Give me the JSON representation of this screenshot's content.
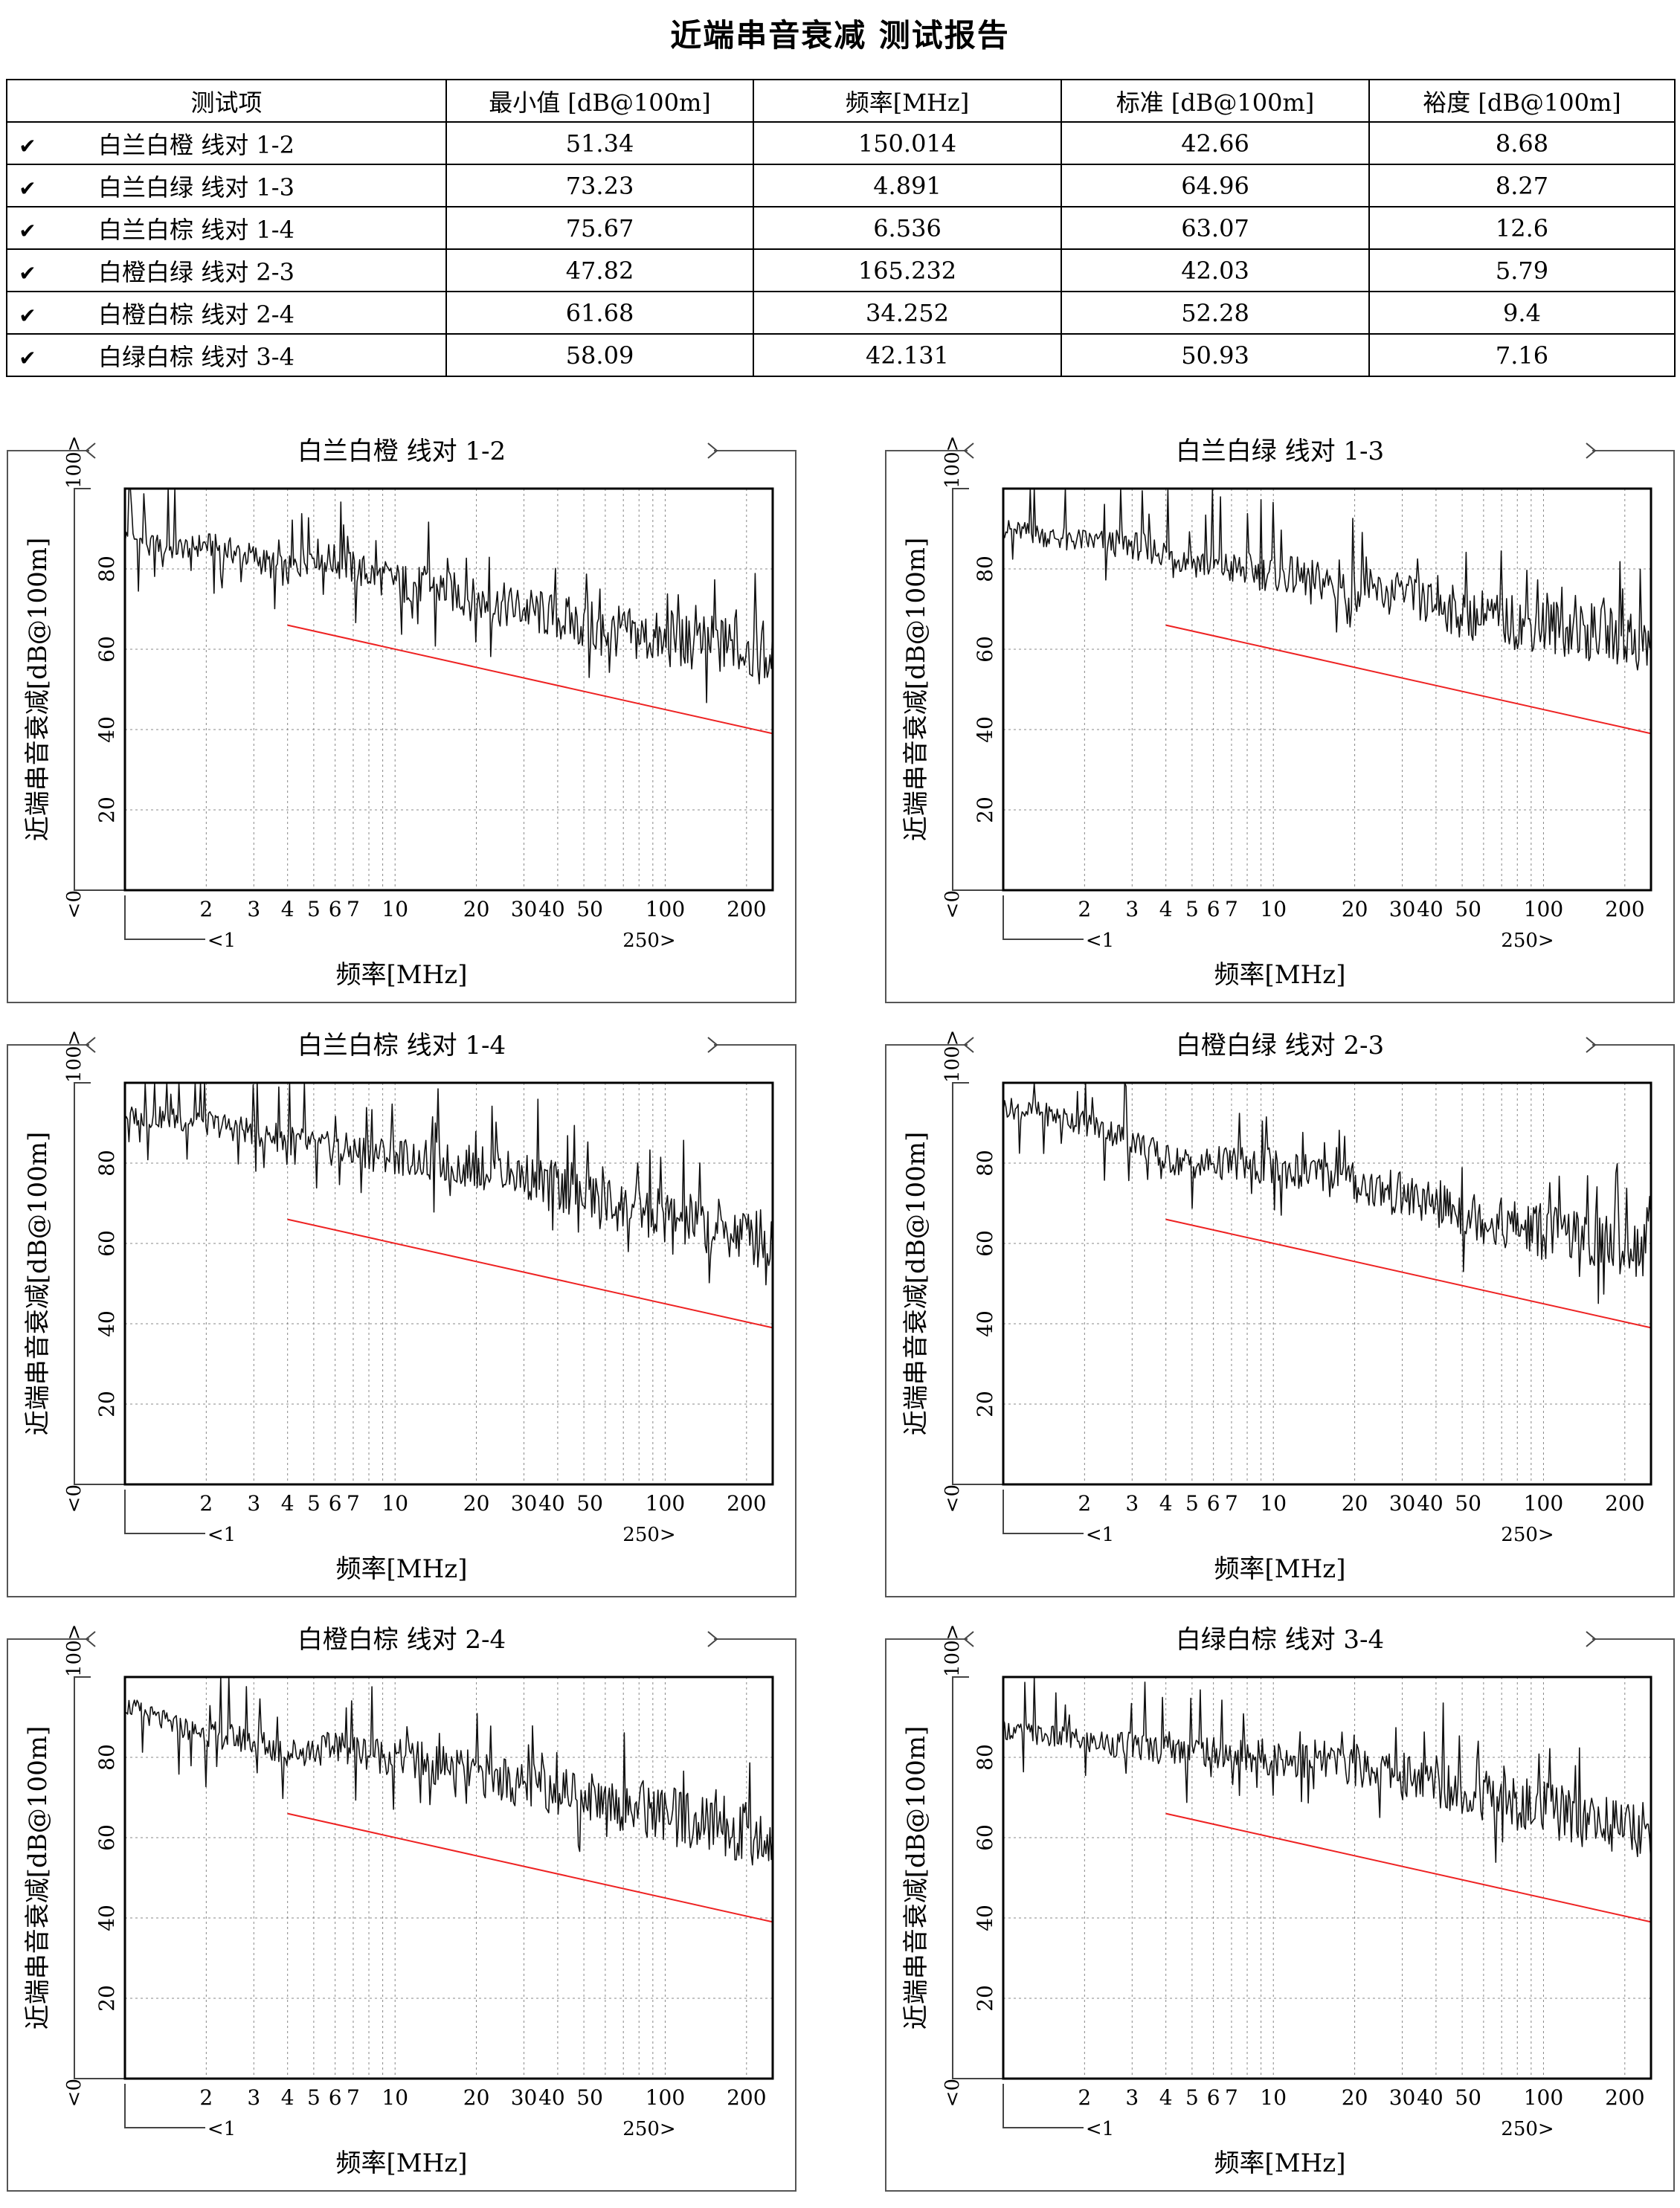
{
  "title": "近端串音衰减 测试报告",
  "table": {
    "headers": [
      "测试项",
      "最小值 [dB@100m]",
      "频率[MHz]",
      "标准 [dB@100m]",
      "裕度 [dB@100m]"
    ],
    "rows": [
      {
        "label": "白兰白橙 线对 1-2",
        "min": "51.34",
        "freq": "150.014",
        "std": "42.66",
        "margin": "8.68"
      },
      {
        "label": "白兰白绿 线对 1-3",
        "min": "73.23",
        "freq": "4.891",
        "std": "64.96",
        "margin": "8.27"
      },
      {
        "label": "白兰白棕 线对 1-4",
        "min": "75.67",
        "freq": "6.536",
        "std": "63.07",
        "margin": "12.6"
      },
      {
        "label": "白橙白绿 线对 2-3",
        "min": "47.82",
        "freq": "165.232",
        "std": "42.03",
        "margin": "5.79"
      },
      {
        "label": "白橙白棕 线对 2-4",
        "min": "61.68",
        "freq": "34.252",
        "std": "52.28",
        "margin": "9.4"
      },
      {
        "label": "白绿白棕 线对 3-4",
        "min": "58.09",
        "freq": "42.131",
        "std": "50.93",
        "margin": "7.16"
      }
    ]
  },
  "colors": {
    "limit_line": "#ee2222",
    "measurement": "#111111",
    "grid": "#888888"
  },
  "icons": {
    "row_status": "checkmark-icon",
    "range_markers": "angle-bracket-icon"
  },
  "chart_data": [
    {
      "type": "line",
      "title": "白兰白橙 线对 1-2",
      "xlabel": "频率[MHz]",
      "ylabel": "近端串音衰减[dB@100m]",
      "x_scale": "log",
      "xlim": [
        1,
        250
      ],
      "ylim": [
        0,
        100
      ],
      "x_ticks": [
        "2",
        "3",
        "4",
        "5",
        "6",
        "7",
        "10",
        "20",
        "30",
        "40",
        "50",
        "100",
        "200"
      ],
      "x_range_labels": [
        "<1",
        "250>"
      ],
      "y_ticks": [
        "20",
        "40",
        "60",
        "80"
      ],
      "y_range_labels": [
        "<0",
        "100>"
      ],
      "grid": true,
      "series": [
        {
          "values": [
            [
              1,
              88
            ],
            [
              1.5,
              85
            ],
            [
              2,
              86
            ],
            [
              3,
              83
            ],
            [
              4,
              79
            ],
            [
              5,
              84
            ],
            [
              7,
              80
            ],
            [
              10,
              77
            ],
            [
              15,
              75
            ],
            [
              20,
              72
            ],
            [
              30,
              70
            ],
            [
              50,
              66
            ],
            [
              70,
              64
            ],
            [
              100,
              62
            ],
            [
              150,
              61
            ],
            [
              200,
              60
            ],
            [
              250,
              57
            ]
          ]
        },
        {
          "values": [
            [
              4,
              66
            ],
            [
              250,
              39
            ]
          ]
        }
      ],
      "min": {
        "x": 150.014,
        "y": 51.34
      }
    },
    {
      "type": "line",
      "title": "白兰白绿 线对 1-3",
      "xlabel": "频率[MHz]",
      "ylabel": "近端串音衰减[dB@100m]",
      "x_scale": "log",
      "xlim": [
        1,
        250
      ],
      "ylim": [
        0,
        100
      ],
      "x_ticks": [
        "2",
        "3",
        "4",
        "5",
        "6",
        "7",
        "10",
        "20",
        "30",
        "40",
        "50",
        "100",
        "200"
      ],
      "x_range_labels": [
        "<1",
        "250>"
      ],
      "y_ticks": [
        "20",
        "40",
        "60",
        "80"
      ],
      "y_range_labels": [
        "<0",
        "100>"
      ],
      "grid": true,
      "series": [
        {
          "values": [
            [
              1,
              90
            ],
            [
              1.5,
              88
            ],
            [
              2,
              87
            ],
            [
              3,
              86
            ],
            [
              4,
              84
            ],
            [
              5,
              82
            ],
            [
              7,
              80
            ],
            [
              10,
              79
            ],
            [
              15,
              77
            ],
            [
              20,
              75
            ],
            [
              30,
              73
            ],
            [
              50,
              69
            ],
            [
              70,
              67
            ],
            [
              100,
              66
            ],
            [
              150,
              64
            ],
            [
              200,
              63
            ],
            [
              250,
              61
            ]
          ]
        },
        {
          "values": [
            [
              4,
              66
            ],
            [
              250,
              39
            ]
          ]
        }
      ],
      "min": {
        "x": 4.891,
        "y": 73.23
      }
    },
    {
      "type": "line",
      "title": "白兰白棕 线对 1-4",
      "xlabel": "频率[MHz]",
      "ylabel": "近端串音衰减[dB@100m]",
      "x_scale": "log",
      "xlim": [
        1,
        250
      ],
      "ylim": [
        0,
        100
      ],
      "x_ticks": [
        "2",
        "3",
        "4",
        "5",
        "6",
        "7",
        "10",
        "20",
        "30",
        "40",
        "50",
        "100",
        "200"
      ],
      "x_range_labels": [
        "<1",
        "250>"
      ],
      "y_ticks": [
        "20",
        "40",
        "60",
        "80"
      ],
      "y_range_labels": [
        "<0",
        "100>"
      ],
      "grid": true,
      "series": [
        {
          "values": [
            [
              1,
              92
            ],
            [
              1.5,
              91
            ],
            [
              2,
              90
            ],
            [
              3,
              88
            ],
            [
              4,
              86
            ],
            [
              5,
              84
            ],
            [
              7,
              83
            ],
            [
              10,
              82
            ],
            [
              15,
              80
            ],
            [
              20,
              79
            ],
            [
              30,
              77
            ],
            [
              50,
              72
            ],
            [
              70,
              69
            ],
            [
              100,
              67
            ],
            [
              150,
              64
            ],
            [
              200,
              62
            ],
            [
              250,
              60
            ]
          ]
        },
        {
          "values": [
            [
              4,
              66
            ],
            [
              250,
              39
            ]
          ]
        }
      ],
      "min": {
        "x": 6.536,
        "y": 75.67
      }
    },
    {
      "type": "line",
      "title": "白橙白绿 线对 2-3",
      "xlabel": "频率[MHz]",
      "ylabel": "近端串音衰减[dB@100m]",
      "x_scale": "log",
      "xlim": [
        1,
        250
      ],
      "ylim": [
        0,
        100
      ],
      "x_ticks": [
        "2",
        "3",
        "4",
        "5",
        "6",
        "7",
        "10",
        "20",
        "30",
        "40",
        "50",
        "100",
        "200"
      ],
      "x_range_labels": [
        "<1",
        "250>"
      ],
      "y_ticks": [
        "20",
        "40",
        "60",
        "80"
      ],
      "y_range_labels": [
        "<0",
        "100>"
      ],
      "grid": true,
      "series": [
        {
          "values": [
            [
              1,
              94
            ],
            [
              1.5,
              92
            ],
            [
              2,
              90
            ],
            [
              3,
              86
            ],
            [
              4,
              81
            ],
            [
              5,
              80
            ],
            [
              7,
              80
            ],
            [
              10,
              79
            ],
            [
              15,
              77
            ],
            [
              20,
              75
            ],
            [
              30,
              72
            ],
            [
              50,
              68
            ],
            [
              70,
              65
            ],
            [
              100,
              63
            ],
            [
              150,
              61
            ],
            [
              200,
              60
            ],
            [
              250,
              58
            ]
          ]
        },
        {
          "values": [
            [
              4,
              66
            ],
            [
              250,
              39
            ]
          ]
        }
      ],
      "min": {
        "x": 165.232,
        "y": 47.82
      }
    },
    {
      "type": "line",
      "title": "白橙白棕 线对 2-4",
      "xlabel": "频率[MHz]",
      "ylabel": "近端串音衰减[dB@100m]",
      "x_scale": "log",
      "xlim": [
        1,
        250
      ],
      "ylim": [
        0,
        100
      ],
      "x_ticks": [
        "2",
        "3",
        "4",
        "5",
        "6",
        "7",
        "10",
        "20",
        "30",
        "40",
        "50",
        "100",
        "200"
      ],
      "x_range_labels": [
        "<1",
        "250>"
      ],
      "y_ticks": [
        "20",
        "40",
        "60",
        "80"
      ],
      "y_range_labels": [
        "<0",
        "100>"
      ],
      "grid": true,
      "series": [
        {
          "values": [
            [
              1,
              93
            ],
            [
              1.5,
              88
            ],
            [
              2,
              86
            ],
            [
              3,
              84
            ],
            [
              4,
              81
            ],
            [
              5,
              82
            ],
            [
              7,
              82
            ],
            [
              10,
              80
            ],
            [
              15,
              78
            ],
            [
              20,
              76
            ],
            [
              30,
              73
            ],
            [
              50,
              71
            ],
            [
              70,
              68
            ],
            [
              100,
              66
            ],
            [
              150,
              63
            ],
            [
              200,
              61
            ],
            [
              250,
              59
            ]
          ]
        },
        {
          "values": [
            [
              4,
              66
            ],
            [
              250,
              39
            ]
          ]
        }
      ],
      "min": {
        "x": 34.252,
        "y": 61.68
      }
    },
    {
      "type": "line",
      "title": "白绿白棕 线对 3-4",
      "xlabel": "频率[MHz]",
      "ylabel": "近端串音衰减[dB@100m]",
      "x_scale": "log",
      "xlim": [
        1,
        250
      ],
      "ylim": [
        0,
        100
      ],
      "x_ticks": [
        "2",
        "3",
        "4",
        "5",
        "6",
        "7",
        "10",
        "20",
        "30",
        "40",
        "50",
        "100",
        "200"
      ],
      "x_range_labels": [
        "<1",
        "250>"
      ],
      "y_ticks": [
        "20",
        "40",
        "60",
        "80"
      ],
      "y_range_labels": [
        "<0",
        "100>"
      ],
      "grid": true,
      "series": [
        {
          "values": [
            [
              1,
              87
            ],
            [
              1.5,
              85
            ],
            [
              2,
              84
            ],
            [
              3,
              83
            ],
            [
              4,
              82
            ],
            [
              5,
              82
            ],
            [
              7,
              81
            ],
            [
              10,
              80
            ],
            [
              15,
              79
            ],
            [
              20,
              78
            ],
            [
              30,
              76
            ],
            [
              50,
              72
            ],
            [
              70,
              69
            ],
            [
              100,
              67
            ],
            [
              150,
              65
            ],
            [
              200,
              63
            ],
            [
              250,
              61
            ]
          ]
        },
        {
          "values": [
            [
              4,
              66
            ],
            [
              250,
              39
            ]
          ]
        }
      ],
      "min": {
        "x": 42.131,
        "y": 58.09
      }
    }
  ]
}
